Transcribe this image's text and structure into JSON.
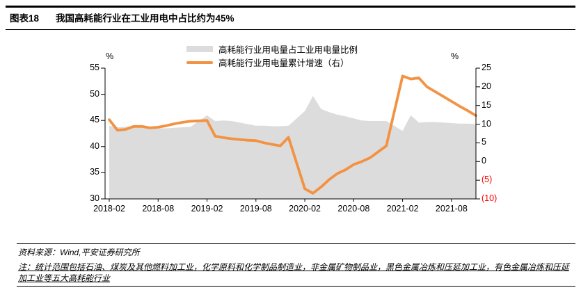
{
  "header": {
    "label": "图表18",
    "title": "我国高耗能行业在工业用电中占比约为45%"
  },
  "chart_data": {
    "type": "combo",
    "title": "我国高耗能行业在工业用电中占比约为45%",
    "legend_position": "top-center",
    "grid": false,
    "x_tick_labels": [
      "2018-02",
      "2018-08",
      "2019-02",
      "2019-08",
      "2020-02",
      "2020-08",
      "2021-02",
      "2021-08"
    ],
    "x_tick_t": [
      0,
      6,
      12,
      18,
      24,
      30,
      36,
      42
    ],
    "left_axis": {
      "unit": "%",
      "min": 30,
      "max": 55,
      "ticks": [
        "55",
        "50",
        "45",
        "40",
        "35",
        "30"
      ]
    },
    "right_axis": {
      "unit": "%",
      "min": -10,
      "max": 25,
      "ticks": [
        "25",
        "20",
        "15",
        "10",
        "5",
        "0",
        "(5)",
        "(10)"
      ],
      "negative_color": "#ff0000"
    },
    "months": [
      "2018-02",
      "2018-03",
      "2018-04",
      "2018-05",
      "2018-06",
      "2018-07",
      "2018-08",
      "2018-09",
      "2018-10",
      "2018-11",
      "2018-12",
      "2019-02",
      "2019-03",
      "2019-04",
      "2019-05",
      "2019-06",
      "2019-07",
      "2019-08",
      "2019-09",
      "2019-10",
      "2019-11",
      "2019-12",
      "2020-02",
      "2020-03",
      "2020-04",
      "2020-05",
      "2020-06",
      "2020-07",
      "2020-08",
      "2020-09",
      "2020-10",
      "2020-11",
      "2020-12",
      "2021-02",
      "2021-03",
      "2021-04",
      "2021-05",
      "2021-06",
      "2021-07",
      "2021-08",
      "2021-09",
      "2021-10",
      "2021-11"
    ],
    "series": [
      {
        "name": "高耗能行业用电量占工业用电量比例",
        "type": "area",
        "axis": "left",
        "color": "#dcdcdc",
        "values": [
          44.0,
          43.7,
          43.8,
          43.9,
          43.8,
          43.7,
          43.5,
          43.5,
          43.6,
          43.7,
          43.8,
          46.0,
          44.9,
          45.0,
          44.9,
          44.6,
          44.3,
          44.0,
          44.0,
          43.9,
          43.9,
          44.0,
          46.8,
          49.7,
          47.2,
          46.6,
          46.1,
          45.8,
          45.4,
          45.0,
          44.9,
          44.9,
          44.9,
          43.0,
          46.0,
          44.6,
          44.7,
          44.7,
          44.6,
          44.5,
          44.4,
          44.4,
          44.3
        ]
      },
      {
        "name": "高耗能行业用电量累计增速（右）",
        "type": "line",
        "axis": "right",
        "color": "#f29242",
        "values": [
          11.2,
          8.4,
          8.6,
          9.4,
          9.4,
          9.0,
          9.2,
          9.6,
          10.1,
          10.5,
          10.8,
          11.0,
          6.8,
          6.4,
          6.1,
          5.9,
          5.7,
          5.6,
          5.0,
          4.6,
          4.2,
          6.5,
          -7.3,
          -8.5,
          -6.8,
          -4.8,
          -3.2,
          -2.2,
          -0.8,
          0.0,
          1.0,
          2.6,
          4.2,
          22.9,
          22.1,
          22.4,
          20.0,
          18.7,
          17.4,
          16.1,
          14.8,
          13.6,
          12.3
        ]
      }
    ]
  },
  "footer": {
    "source": "资料来源：Wind,平安证券研究所",
    "note": "注：统计范围包括石油、煤炭及其他燃料加工业，化学原料和化学制品制造业，非金属矿物制品业，黑色金属冶炼和压延加工业，有色金属冶炼和压延加工业等五大高耗能行业"
  }
}
